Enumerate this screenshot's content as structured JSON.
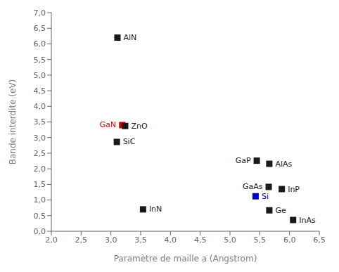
{
  "chart_data": {
    "type": "scatter",
    "xlabel": "Paramètre de maille a (Angstrom)",
    "ylabel": "Bande interdite (eV)",
    "xlim": [
      2.0,
      6.5
    ],
    "ylim": [
      0.0,
      7.0
    ],
    "xticks": [
      {
        "value": 2.0,
        "label": "2,0"
      },
      {
        "value": 2.5,
        "label": "2,5"
      },
      {
        "value": 3.0,
        "label": "3,0"
      },
      {
        "value": 3.5,
        "label": "3,5"
      },
      {
        "value": 4.0,
        "label": "4,0"
      },
      {
        "value": 4.5,
        "label": "4,5"
      },
      {
        "value": 5.0,
        "label": "5,0"
      },
      {
        "value": 5.5,
        "label": "5,5"
      },
      {
        "value": 6.0,
        "label": "6,0"
      },
      {
        "value": 6.5,
        "label": "6,5"
      }
    ],
    "yticks": [
      {
        "value": 0.0,
        "label": "0,0"
      },
      {
        "value": 0.5,
        "label": "0,5"
      },
      {
        "value": 1.0,
        "label": "1,0"
      },
      {
        "value": 1.5,
        "label": "1,5"
      },
      {
        "value": 2.0,
        "label": "2,0"
      },
      {
        "value": 2.5,
        "label": "2,5"
      },
      {
        "value": 3.0,
        "label": "3,0"
      },
      {
        "value": 3.5,
        "label": "3,5"
      },
      {
        "value": 4.0,
        "label": "4,0"
      },
      {
        "value": 4.5,
        "label": "4,5"
      },
      {
        "value": 5.0,
        "label": "5,0"
      },
      {
        "value": 5.5,
        "label": "5,5"
      },
      {
        "value": 6.0,
        "label": "6,0"
      },
      {
        "value": 6.5,
        "label": "6,5"
      },
      {
        "value": 7.0,
        "label": "7,0"
      }
    ],
    "grid": false,
    "points": [
      {
        "name": "AlN",
        "x": 3.11,
        "y": 6.2,
        "color": "#1a1a1a"
      },
      {
        "name": "GaN",
        "x": 3.19,
        "y": 3.4,
        "color": "#cc0000"
      },
      {
        "name": "ZnO",
        "x": 3.24,
        "y": 3.37,
        "color": "#1a1a1a"
      },
      {
        "name": "SiC",
        "x": 3.1,
        "y": 2.86,
        "color": "#1a1a1a"
      },
      {
        "name": "InN",
        "x": 3.54,
        "y": 0.7,
        "color": "#1a1a1a"
      },
      {
        "name": "GaP",
        "x": 5.45,
        "y": 2.26,
        "color": "#1a1a1a"
      },
      {
        "name": "AlAs",
        "x": 5.66,
        "y": 2.16,
        "color": "#1a1a1a"
      },
      {
        "name": "GaAs",
        "x": 5.65,
        "y": 1.42,
        "color": "#1a1a1a"
      },
      {
        "name": "InP",
        "x": 5.87,
        "y": 1.35,
        "color": "#1a1a1a"
      },
      {
        "name": "Si",
        "x": 5.43,
        "y": 1.12,
        "color": "#0000cc"
      },
      {
        "name": "Ge",
        "x": 5.66,
        "y": 0.67,
        "color": "#1a1a1a"
      },
      {
        "name": "InAs",
        "x": 6.06,
        "y": 0.36,
        "color": "#1a1a1a"
      }
    ]
  }
}
